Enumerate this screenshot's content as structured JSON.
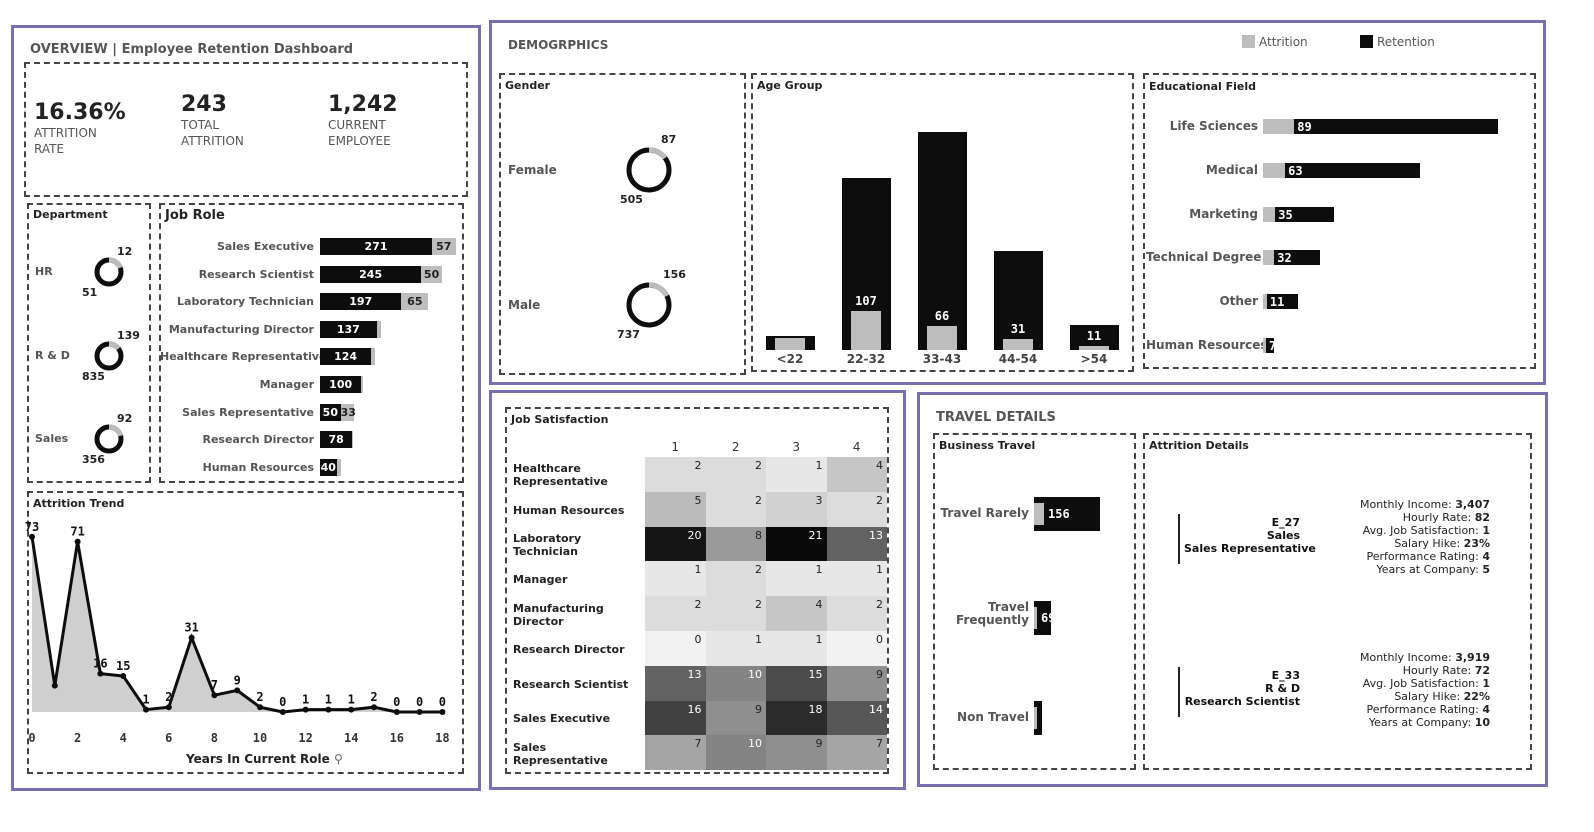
{
  "overview": {
    "title": "OVERVIEW | Employee Retention Dashboard",
    "kpis": [
      {
        "value": "16.36%",
        "label_1": "ATTRITION",
        "label_2": "RATE"
      },
      {
        "value": "243",
        "label_1": "TOTAL",
        "label_2": "ATTRITION"
      },
      {
        "value": "1,242",
        "label_1": "CURRENT",
        "label_2": "EMPLOYEE"
      }
    ]
  },
  "legend": {
    "attrition": "Attrition",
    "retention": "Retention"
  },
  "colors": {
    "attrition": "#bdbdbd",
    "retention": "#0d0d0d",
    "panel_border": "#7b6fb0"
  },
  "department": {
    "title": "Department",
    "items": [
      {
        "name": "HR",
        "attrition": "12",
        "retention": "51"
      },
      {
        "name": "R & D",
        "attrition": "139",
        "retention": "835"
      },
      {
        "name": "Sales",
        "attrition": "92",
        "retention": "356"
      }
    ]
  },
  "job_role": {
    "title": "Job Role",
    "rows": [
      {
        "name": "Sales Executive",
        "retention": 271,
        "attrition": 57
      },
      {
        "name": "Research Scientist",
        "retention": 245,
        "attrition": 50
      },
      {
        "name": "Laboratory Technician",
        "retention": 197,
        "attrition": 65
      },
      {
        "name": "Manufacturing Director",
        "retention": 137,
        "attrition": 10
      },
      {
        "name": "Healthcare Representative",
        "retention": 124,
        "attrition": 9
      },
      {
        "name": "Manager",
        "retention": 100,
        "attrition": 5
      },
      {
        "name": "Sales Representative",
        "retention": 50,
        "attrition": 33
      },
      {
        "name": "Research Director",
        "retention": 78,
        "attrition": 2
      },
      {
        "name": "Human Resources",
        "retention": 40,
        "attrition": 12
      }
    ]
  },
  "trend": {
    "title": "Attrition Trend",
    "xlabel": "Years In Current Role",
    "ticks": [
      "0",
      "2",
      "4",
      "6",
      "8",
      "10",
      "12",
      "14",
      "16",
      "18"
    ],
    "x": [
      0,
      1,
      2,
      3,
      4,
      5,
      6,
      7,
      8,
      9,
      10,
      11,
      12,
      13,
      14,
      15,
      16,
      17,
      18
    ],
    "y": [
      73,
      11,
      71,
      16,
      15,
      1,
      2,
      31,
      7,
      9,
      2,
      0,
      1,
      1,
      1,
      2,
      0,
      0,
      0
    ],
    "labels": [
      "73",
      "",
      "71",
      "16",
      "15",
      "1",
      "2",
      "31",
      "7",
      "9",
      "2",
      "0",
      "1",
      "1",
      "1",
      "2",
      "0",
      "0",
      "0"
    ]
  },
  "demographics": {
    "title": "DEMOGRPHICS",
    "gender": {
      "title": "Gender",
      "items": [
        {
          "name": "Female",
          "attrition": "87",
          "retention": "505"
        },
        {
          "name": "Male",
          "attrition": "156",
          "retention": "737"
        }
      ]
    },
    "age": {
      "title": "Age Group",
      "categories": [
        "<22",
        "22-32",
        "33-43",
        "44-54",
        ">54"
      ],
      "attrition": [
        33,
        107,
        66,
        31,
        11
      ],
      "retention": [
        60,
        750,
        950,
        430,
        110
      ],
      "labels": [
        "",
        "107",
        "66",
        "31",
        "11"
      ]
    },
    "education": {
      "title": "Educational Field",
      "rows": [
        {
          "name": "Life Sciences",
          "attrition": 89,
          "retention": 600
        },
        {
          "name": "Medical",
          "attrition": 63,
          "retention": 400
        },
        {
          "name": "Marketing",
          "attrition": 35,
          "retention": 180
        },
        {
          "name": "Technical Degree",
          "attrition": 32,
          "retention": 145
        },
        {
          "name": "Other",
          "attrition": 11,
          "retention": 90
        },
        {
          "name": "Human Resources",
          "attrition": 7,
          "retention": 27
        }
      ],
      "labels": [
        "89",
        "63",
        "35",
        "32",
        "11",
        "7"
      ]
    }
  },
  "job_satisfaction": {
    "title": "Job Satisfaction",
    "columns": [
      "1",
      "2",
      "3",
      "4"
    ],
    "rows": [
      {
        "name": "Healthcare Representative",
        "values": [
          2,
          2,
          1,
          4
        ]
      },
      {
        "name": "Human Resources",
        "values": [
          5,
          2,
          3,
          2
        ]
      },
      {
        "name": "Laboratory Technician",
        "values": [
          20,
          8,
          21,
          13
        ]
      },
      {
        "name": "Manager",
        "values": [
          1,
          2,
          1,
          1
        ]
      },
      {
        "name": "Manufacturing Director",
        "values": [
          2,
          2,
          4,
          2
        ]
      },
      {
        "name": "Research Director",
        "values": [
          0,
          1,
          1,
          0
        ]
      },
      {
        "name": "Research Scientist",
        "values": [
          13,
          10,
          15,
          9
        ]
      },
      {
        "name": "Sales Executive",
        "values": [
          16,
          9,
          18,
          14
        ]
      },
      {
        "name": "Sales Representative",
        "values": [
          7,
          10,
          9,
          7
        ]
      }
    ]
  },
  "travel": {
    "title": "TRAVEL DETAILS",
    "business": {
      "title": "Business Travel",
      "rows": [
        {
          "name": "Travel Rarely",
          "label": "156",
          "attrition": 20,
          "retention": 156
        },
        {
          "name": "Travel Frequently",
          "label": "69",
          "attrition": 5,
          "retention": 40
        },
        {
          "name": "Non Travel",
          "label": "12",
          "attrition": 2,
          "retention": 20
        }
      ]
    },
    "attrition_details": {
      "title": "Attrition Details",
      "records": [
        {
          "id": "E_27",
          "dept": "Sales",
          "role": "Sales Representative",
          "stats": [
            [
              "Monthly Income: ",
              "3,407"
            ],
            [
              "Hourly Rate: ",
              "82"
            ],
            [
              "Avg. Job Satisfaction: ",
              "1"
            ],
            [
              "Salary Hike: ",
              "23%"
            ],
            [
              "Performance Rating: ",
              "4"
            ],
            [
              "Years at Company: ",
              "5"
            ]
          ]
        },
        {
          "id": "E_33",
          "dept": "R & D",
          "role": "Research Scientist",
          "stats": [
            [
              "Monthly Income: ",
              "3,919"
            ],
            [
              "Hourly Rate: ",
              "72"
            ],
            [
              "Avg. Job Satisfaction: ",
              "1"
            ],
            [
              "Salary Hike: ",
              "22%"
            ],
            [
              "Performance Rating: ",
              "4"
            ],
            [
              "Years at Company: ",
              "10"
            ]
          ]
        }
      ]
    }
  }
}
